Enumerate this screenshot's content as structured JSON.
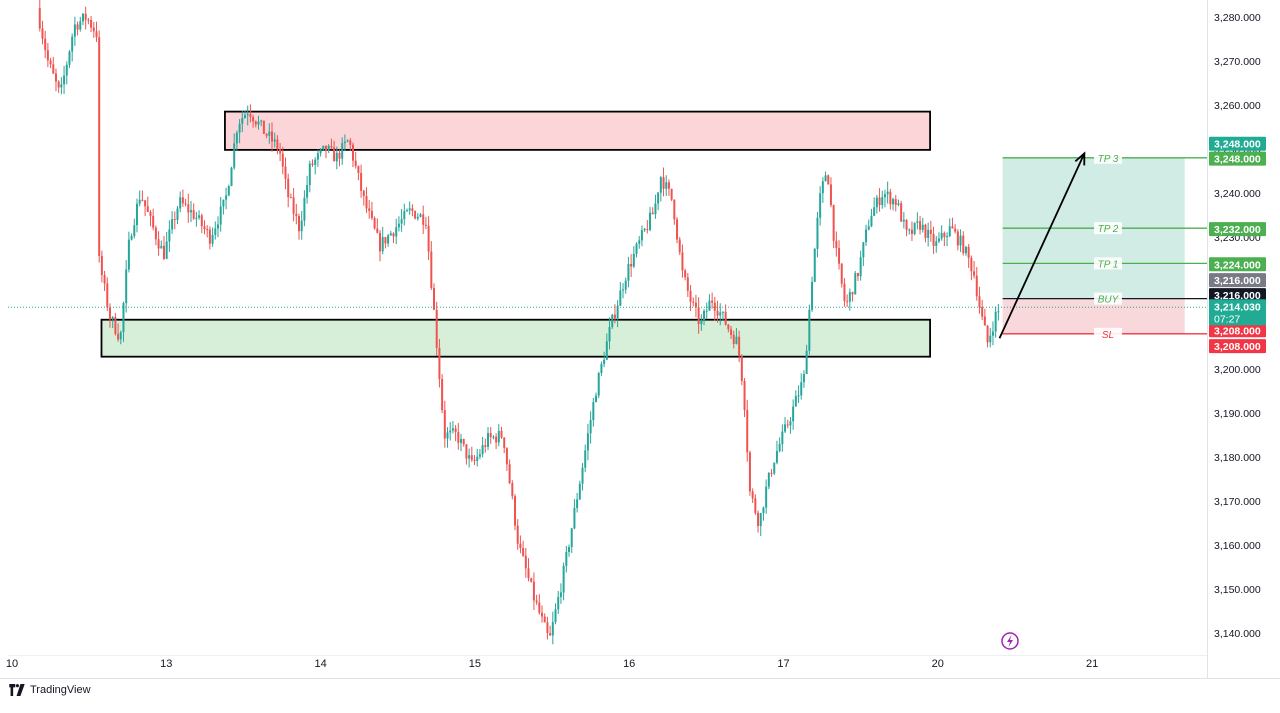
{
  "brand": {
    "name": "TradingView",
    "icon": "tradingview-logo-icon"
  },
  "colors": {
    "up": "#26a69a",
    "down": "#ef5350",
    "supply_fill": "#fbd5d7",
    "demand_fill": "#d7efd9",
    "target_fill": "#cfeae4",
    "risk_fill": "#f8d6d8",
    "tp_line": "#4caf50",
    "sl_line": "#f23645",
    "entry_line": "#131722",
    "price_tag": "#22ab94",
    "grid": "#f0f3fa",
    "axis_text": "#131722"
  },
  "chart_data": {
    "type": "candlestick",
    "title": "",
    "xlabel": "",
    "ylabel": "",
    "ylim": [
      3134,
      3286
    ],
    "y_ticks": [
      3140,
      3150,
      3160,
      3170,
      3180,
      3190,
      3200,
      3210,
      3220,
      3230,
      3240,
      3250,
      3260,
      3270,
      3280
    ],
    "y_tick_labels": [
      "3,140.000",
      "3,150.000",
      "3,160.000",
      "3,170.000",
      "3,180.000",
      "3,190.000",
      "3,200.000",
      "3,210.000",
      "3,220.000",
      "3,230.000",
      "3,240.000",
      "3,250.000",
      "3,260.000",
      "3,270.000",
      "3,280.000"
    ],
    "x_labels": [
      {
        "label": "10",
        "t": 0.0
      },
      {
        "label": "13",
        "t": 1.0
      },
      {
        "label": "14",
        "t": 2.0
      },
      {
        "label": "15",
        "t": 3.0
      },
      {
        "label": "16",
        "t": 4.0
      },
      {
        "label": "17",
        "t": 5.0
      },
      {
        "label": "20",
        "t": 6.0
      },
      {
        "label": "21",
        "t": 7.0
      }
    ],
    "price_path": [
      [
        0.18,
        3282
      ],
      [
        0.25,
        3270
      ],
      [
        0.33,
        3262
      ],
      [
        0.42,
        3278
      ],
      [
        0.5,
        3280
      ],
      [
        0.57,
        3276
      ],
      [
        0.58,
        3225
      ],
      [
        0.65,
        3212
      ],
      [
        0.72,
        3207
      ],
      [
        0.78,
        3230
      ],
      [
        0.85,
        3240
      ],
      [
        0.92,
        3233
      ],
      [
        1.0,
        3226
      ],
      [
        1.1,
        3238
      ],
      [
        1.2,
        3235
      ],
      [
        1.3,
        3230
      ],
      [
        1.4,
        3238
      ],
      [
        1.48,
        3256
      ],
      [
        1.55,
        3259
      ],
      [
        1.65,
        3254
      ],
      [
        1.75,
        3250
      ],
      [
        1.8,
        3240
      ],
      [
        1.88,
        3232
      ],
      [
        1.95,
        3246
      ],
      [
        2.05,
        3250
      ],
      [
        2.12,
        3248
      ],
      [
        2.2,
        3252
      ],
      [
        2.3,
        3238
      ],
      [
        2.4,
        3228
      ],
      [
        2.5,
        3232
      ],
      [
        2.6,
        3236
      ],
      [
        2.7,
        3234
      ],
      [
        2.76,
        3210
      ],
      [
        2.82,
        3185
      ],
      [
        2.9,
        3185
      ],
      [
        3.0,
        3178
      ],
      [
        3.1,
        3184
      ],
      [
        3.2,
        3185
      ],
      [
        3.3,
        3160
      ],
      [
        3.4,
        3148
      ],
      [
        3.5,
        3138
      ],
      [
        3.6,
        3155
      ],
      [
        3.7,
        3175
      ],
      [
        3.8,
        3195
      ],
      [
        3.9,
        3210
      ],
      [
        4.0,
        3222
      ],
      [
        4.1,
        3230
      ],
      [
        4.18,
        3236
      ],
      [
        4.22,
        3244
      ],
      [
        4.3,
        3238
      ],
      [
        4.36,
        3222
      ],
      [
        4.42,
        3215
      ],
      [
        4.48,
        3210
      ],
      [
        4.55,
        3216
      ],
      [
        4.62,
        3212
      ],
      [
        4.68,
        3208
      ],
      [
        4.72,
        3206
      ],
      [
        4.76,
        3195
      ],
      [
        4.8,
        3172
      ],
      [
        4.86,
        3165
      ],
      [
        4.9,
        3172
      ],
      [
        4.96,
        3180
      ],
      [
        5.05,
        3188
      ],
      [
        5.15,
        3198
      ],
      [
        5.2,
        3220
      ],
      [
        5.25,
        3238
      ],
      [
        5.3,
        3246
      ],
      [
        5.35,
        3228
      ],
      [
        5.42,
        3214
      ],
      [
        5.5,
        3222
      ],
      [
        5.58,
        3235
      ],
      [
        5.66,
        3240
      ],
      [
        5.75,
        3238
      ],
      [
        5.82,
        3230
      ],
      [
        5.9,
        3233
      ],
      [
        6.0,
        3228
      ],
      [
        6.1,
        3232
      ],
      [
        6.18,
        3228
      ],
      [
        6.25,
        3222
      ],
      [
        6.3,
        3212
      ],
      [
        6.34,
        3206
      ],
      [
        6.4,
        3213
      ]
    ],
    "zones": [
      {
        "name": "supply-zone",
        "t0": 1.38,
        "t1": 5.95,
        "y_top": 3258.5,
        "y_bottom": 3249.8
      },
      {
        "name": "demand-zone",
        "t0": 0.58,
        "t1": 5.95,
        "y_top": 3211.2,
        "y_bottom": 3202.8
      }
    ],
    "position": {
      "t0": 6.42,
      "t1": 7.6,
      "entry": 3216,
      "stop": 3208,
      "target": 3248,
      "arrow_from": {
        "t": 6.4,
        "y": 3207
      },
      "arrow_to": {
        "t": 6.95,
        "y": 3249
      }
    },
    "level_lines": [
      {
        "key": "tp3",
        "label": "TP 3",
        "y": 3248,
        "tag": "3,248.000"
      },
      {
        "key": "tp2",
        "label": "TP 2",
        "y": 3232,
        "tag": "3,232.000"
      },
      {
        "key": "tp1",
        "label": "TP 1",
        "y": 3224,
        "tag": "3,224.000"
      },
      {
        "key": "buy",
        "label": "BUY",
        "y": 3216,
        "tag": "3,216.000"
      },
      {
        "key": "sl",
        "label": "SL",
        "y": 3208,
        "tag": "3,208.000"
      }
    ],
    "last_price": {
      "value": 3214.03,
      "label": "3,214.030",
      "countdown": "07:27"
    },
    "axis_tags": [
      {
        "text": "3,248.000",
        "y": 3251.2,
        "kind": "up"
      },
      {
        "text": "3,248.000",
        "y": 3247.8,
        "kind": "tp"
      },
      {
        "text": "3,232.000",
        "y": 3231.8,
        "kind": "tp"
      },
      {
        "text": "3,224.000",
        "y": 3223.8,
        "kind": "tp"
      },
      {
        "text": "3,216.000",
        "y": 3220.2,
        "kind": "grey"
      },
      {
        "text": "3,216.000",
        "y": 3216.8,
        "kind": "black"
      },
      {
        "text": "3,208.000",
        "y": 3208.8,
        "kind": "sl"
      },
      {
        "text": "3,208.000",
        "y": 3205.2,
        "kind": "sl"
      }
    ],
    "grid": false,
    "legend": "none"
  }
}
